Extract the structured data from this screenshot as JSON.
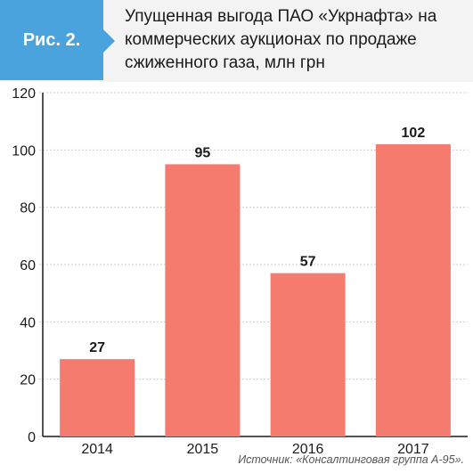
{
  "figure_label": "Рис. 2.",
  "title_lines": [
    "Упущенная выгода ПАО «Укрнафта» на",
    "коммерческих аукционах по продаже",
    "сжиженного газа, млн грн"
  ],
  "source": "Источник: «Консалтинговая группа А-95».",
  "colors": {
    "bar": "#f47b6e",
    "badge": "#4aa3dc",
    "header_bg": "#f3f3f3"
  },
  "chart_data": {
    "type": "bar",
    "title": "Упущенная выгода ПАО «Укрнафта» на коммерческих аукционах по продаже сжиженного газа, млн грн",
    "categories": [
      "2014",
      "2015",
      "2016",
      "2017"
    ],
    "values": [
      27,
      95,
      57,
      102
    ],
    "ylim": [
      0,
      120
    ],
    "yticks": [
      0,
      20,
      40,
      60,
      80,
      100,
      120
    ],
    "grid": true,
    "xlabel": "",
    "ylabel": ""
  }
}
